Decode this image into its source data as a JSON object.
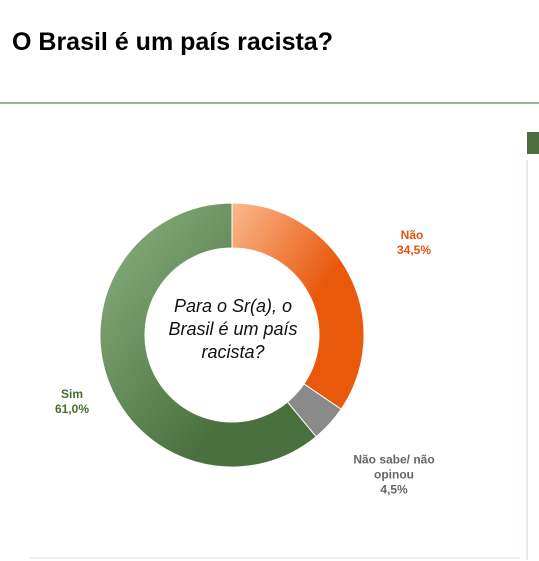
{
  "chart_data": {
    "type": "donut",
    "title": "O Brasil é um país racista?",
    "center_text": "Para o Sr(a), o Brasil é um país racista?",
    "categories": [
      "Não",
      "Não sabe/ não opinou",
      "Sim"
    ],
    "values": [
      34.5,
      4.5,
      61.0
    ],
    "value_labels": [
      "34,5%",
      "4,5%",
      "61,0%"
    ],
    "colors": [
      "#e8590c",
      "#8a8a8a",
      "#557f4a"
    ],
    "label_colors": [
      "#e8510e",
      "#666666",
      "#4a6b2e"
    ]
  }
}
